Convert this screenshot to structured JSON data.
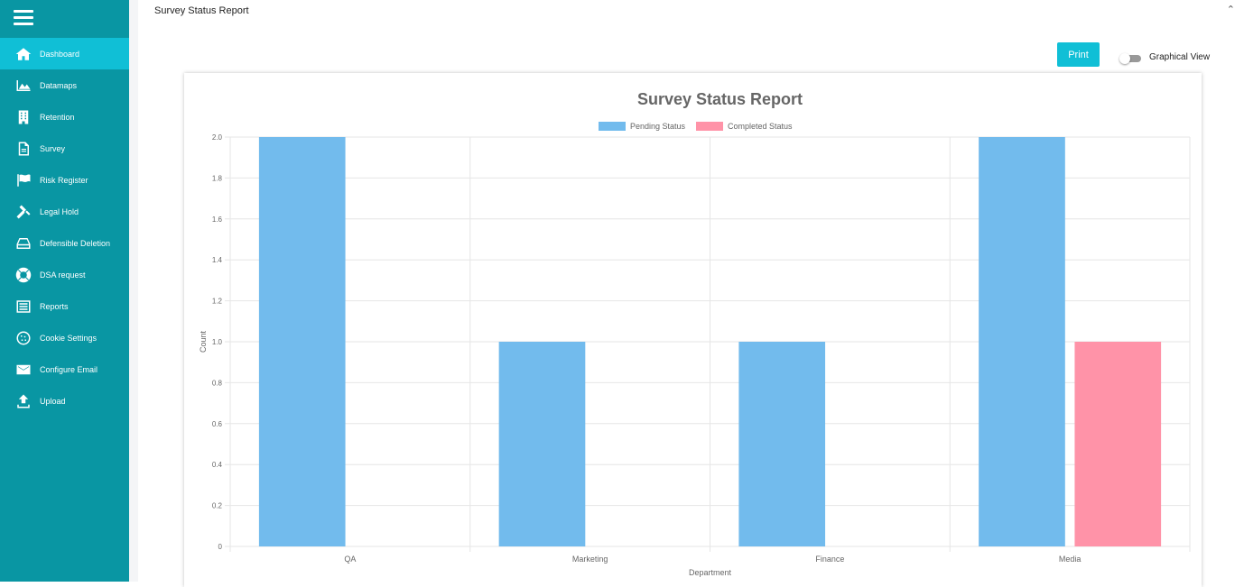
{
  "sidebar": {
    "items": [
      {
        "label": "Dashboard",
        "icon": "home-icon",
        "active": true
      },
      {
        "label": "Datamaps",
        "icon": "area-chart-icon"
      },
      {
        "label": "Retention",
        "icon": "building-icon"
      },
      {
        "label": "Survey",
        "icon": "document-icon"
      },
      {
        "label": "Risk Register",
        "icon": "flag-icon"
      },
      {
        "label": "Legal Hold",
        "icon": "gavel-icon"
      },
      {
        "label": "Defensible Deletion",
        "icon": "drive-icon"
      },
      {
        "label": "DSA request",
        "icon": "lifebuoy-icon"
      },
      {
        "label": "Reports",
        "icon": "list-icon"
      },
      {
        "label": "Cookie Settings",
        "icon": "cookie-icon"
      },
      {
        "label": "Configure Email",
        "icon": "envelope-icon"
      },
      {
        "label": "Upload",
        "icon": "upload-icon"
      }
    ]
  },
  "card": {
    "title": "Survey Status Report",
    "print_label": "Print",
    "toggle_label": "Graphical View",
    "toggle_on": false
  },
  "colors": {
    "sidebar_bg": "#0996a3",
    "active_bg": "#10bfd6",
    "pending": "#72bbed",
    "completed": "#ff93a8"
  },
  "chart_data": {
    "type": "bar",
    "title": "Survey Status Report",
    "xlabel": "Department",
    "ylabel": "Count",
    "categories": [
      "QA",
      "Marketing",
      "Finance",
      "Media"
    ],
    "series": [
      {
        "name": "Pending Status",
        "values": [
          2,
          1,
          1,
          2
        ],
        "color": "#72bbed"
      },
      {
        "name": "Completed Status",
        "values": [
          0,
          0,
          0,
          1
        ],
        "color": "#ff93a8"
      }
    ],
    "ylim": [
      0,
      2.0
    ],
    "yticks": [
      "0",
      "0.2",
      "0.4",
      "0.6",
      "0.8",
      "1.0",
      "1.2",
      "1.4",
      "1.6",
      "1.8",
      "2.0"
    ],
    "legend": "top",
    "grid": true
  }
}
